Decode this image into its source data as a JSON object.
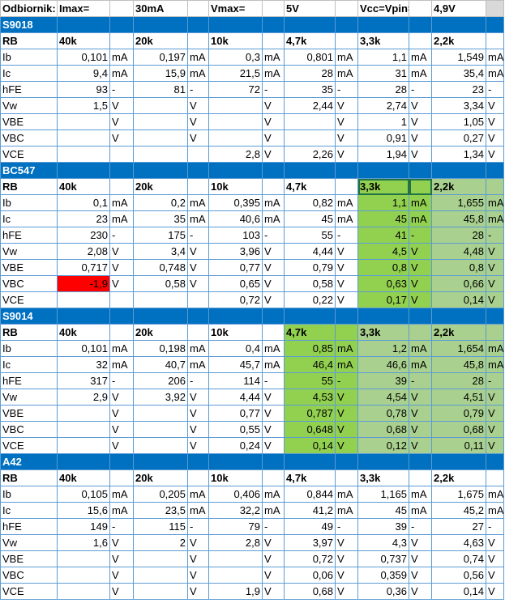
{
  "header": {
    "label": "Odbiornik:",
    "imax_label": "Imax=",
    "imax_value": "30mA",
    "vmax_label": "Vmax=",
    "vmax_value": "5V",
    "vcc_label": "Vcc=Vpin=",
    "vcc_value": "4,9V"
  },
  "colors": {
    "section": "#0070c0",
    "highlight_green": "#92d050",
    "highlight_light_green": "#a9d08e",
    "highlight_red": "#ff0000",
    "grid": "#5b9bd5"
  },
  "sections": [
    {
      "name": "S9018",
      "rb_label": "RB",
      "resistors": [
        "40k",
        "20k",
        "10k",
        "4,7k",
        "3,3k",
        "2,2k"
      ],
      "rows": [
        {
          "label": "Ib",
          "cells": [
            [
              "0,101",
              "mA"
            ],
            [
              "0,197",
              "mA"
            ],
            [
              "0,3",
              "mA"
            ],
            [
              "0,801",
              "mA"
            ],
            [
              "1,1",
              "mA"
            ],
            [
              "1,549",
              "mA"
            ]
          ]
        },
        {
          "label": "Ic",
          "cells": [
            [
              "9,4",
              "mA"
            ],
            [
              "15,9",
              "mA"
            ],
            [
              "21,5",
              "mA"
            ],
            [
              "28",
              "mA"
            ],
            [
              "31",
              "mA"
            ],
            [
              "35,4",
              "mA"
            ]
          ]
        },
        {
          "label": "hFE",
          "cells": [
            [
              "93",
              "-"
            ],
            [
              "81",
              "-"
            ],
            [
              "72",
              "-"
            ],
            [
              "35",
              "-"
            ],
            [
              "28",
              "-"
            ],
            [
              "23",
              "-"
            ]
          ]
        },
        {
          "label": "Vw",
          "cells": [
            [
              "1,5",
              "V"
            ],
            [
              "",
              "V"
            ],
            [
              "",
              "V"
            ],
            [
              "2,44",
              "V"
            ],
            [
              "2,74",
              "V"
            ],
            [
              "3,34",
              "V"
            ]
          ]
        },
        {
          "label": "VBE",
          "cells": [
            [
              "",
              "V"
            ],
            [
              "",
              "V"
            ],
            [
              "",
              "V"
            ],
            [
              "",
              "V"
            ],
            [
              "1",
              "V"
            ],
            [
              "1,05",
              "V"
            ]
          ]
        },
        {
          "label": "VBC",
          "cells": [
            [
              "",
              "V"
            ],
            [
              "",
              "V"
            ],
            [
              "",
              "V"
            ],
            [
              "",
              "V"
            ],
            [
              "0,91",
              "V"
            ],
            [
              "0,27",
              "V"
            ]
          ]
        },
        {
          "label": "VCE",
          "cells": [
            [
              "",
              ""
            ],
            [
              "",
              ""
            ],
            [
              "2,8",
              "V"
            ],
            [
              "2,26",
              "V"
            ],
            [
              "1,94",
              "V"
            ],
            [
              "1,34",
              "V"
            ]
          ]
        }
      ]
    },
    {
      "name": "BC547",
      "rb_label": "RB",
      "resistors": [
        "40k",
        "20k",
        "10k",
        "4,7k",
        "3,3k",
        "2,2k"
      ],
      "rows": [
        {
          "label": "Ib",
          "cells": [
            [
              "0,1",
              "mA"
            ],
            [
              "0,2",
              "mA"
            ],
            [
              "0,395",
              "mA"
            ],
            [
              "0,82",
              "mA"
            ],
            [
              "1,1",
              "mA"
            ],
            [
              "1,655",
              "mA"
            ]
          ]
        },
        {
          "label": "Ic",
          "cells": [
            [
              "23",
              "mA"
            ],
            [
              "35",
              "mA"
            ],
            [
              "40,6",
              "mA"
            ],
            [
              "45",
              "mA"
            ],
            [
              "45",
              "mA"
            ],
            [
              "45,8",
              "mA"
            ]
          ]
        },
        {
          "label": "hFE",
          "cells": [
            [
              "230",
              "-"
            ],
            [
              "175",
              "-"
            ],
            [
              "103",
              "-"
            ],
            [
              "55",
              "-"
            ],
            [
              "41",
              "-"
            ],
            [
              "28",
              "-"
            ]
          ]
        },
        {
          "label": "Vw",
          "cells": [
            [
              "2,08",
              "V"
            ],
            [
              "3,4",
              "V"
            ],
            [
              "3,96",
              "V"
            ],
            [
              "4,44",
              "V"
            ],
            [
              "4,5",
              "V"
            ],
            [
              "4,48",
              "V"
            ]
          ]
        },
        {
          "label": "VBE",
          "cells": [
            [
              "0,717",
              "V"
            ],
            [
              "0,748",
              "V"
            ],
            [
              "0,77",
              "V"
            ],
            [
              "0,79",
              "V"
            ],
            [
              "0,8",
              "V"
            ],
            [
              "0,8",
              "V"
            ]
          ]
        },
        {
          "label": "VBC",
          "cells": [
            [
              "-1,9",
              "V"
            ],
            [
              "0,58",
              "V"
            ],
            [
              "0,65",
              "V"
            ],
            [
              "0,58",
              "V"
            ],
            [
              "0,63",
              "V"
            ],
            [
              "0,66",
              "V"
            ]
          ]
        },
        {
          "label": "VCE",
          "cells": [
            [
              "",
              ""
            ],
            [
              "",
              ""
            ],
            [
              "0,72",
              "V"
            ],
            [
              "0,22",
              "V"
            ],
            [
              "0,17",
              "V"
            ],
            [
              "0,14",
              "V"
            ]
          ]
        }
      ]
    },
    {
      "name": "S9014",
      "rb_label": "RB",
      "resistors": [
        "40k",
        "20k",
        "10k",
        "4,7k",
        "3,3k",
        "2,2k"
      ],
      "rows": [
        {
          "label": "Ib",
          "cells": [
            [
              "0,101",
              "mA"
            ],
            [
              "0,198",
              "mA"
            ],
            [
              "0,4",
              "mA"
            ],
            [
              "0,85",
              "mA"
            ],
            [
              "1,2",
              "mA"
            ],
            [
              "1,654",
              "mA"
            ]
          ]
        },
        {
          "label": "Ic",
          "cells": [
            [
              "32",
              "mA"
            ],
            [
              "40,7",
              "mA"
            ],
            [
              "45,7",
              "mA"
            ],
            [
              "46,4",
              "mA"
            ],
            [
              "46,6",
              "mA"
            ],
            [
              "45,8",
              "mA"
            ]
          ]
        },
        {
          "label": "hFE",
          "cells": [
            [
              "317",
              "-"
            ],
            [
              "206",
              "-"
            ],
            [
              "114",
              "-"
            ],
            [
              "55",
              "-"
            ],
            [
              "39",
              "-"
            ],
            [
              "28",
              "-"
            ]
          ]
        },
        {
          "label": "Vw",
          "cells": [
            [
              "2,9",
              "V"
            ],
            [
              "3,92",
              "V"
            ],
            [
              "4,44",
              "V"
            ],
            [
              "4,53",
              "V"
            ],
            [
              "4,54",
              "V"
            ],
            [
              "4,51",
              "V"
            ]
          ]
        },
        {
          "label": "VBE",
          "cells": [
            [
              "",
              "V"
            ],
            [
              "",
              "V"
            ],
            [
              "0,77",
              "V"
            ],
            [
              "0,787",
              "V"
            ],
            [
              "0,78",
              "V"
            ],
            [
              "0,79",
              "V"
            ]
          ]
        },
        {
          "label": "VBC",
          "cells": [
            [
              "",
              "V"
            ],
            [
              "",
              "V"
            ],
            [
              "0,55",
              "V"
            ],
            [
              "0,648",
              "V"
            ],
            [
              "0,68",
              "V"
            ],
            [
              "0,68",
              "V"
            ]
          ]
        },
        {
          "label": "VCE",
          "cells": [
            [
              "",
              "V"
            ],
            [
              "",
              "V"
            ],
            [
              "0,24",
              "V"
            ],
            [
              "0,14",
              "V"
            ],
            [
              "0,12",
              "V"
            ],
            [
              "0,11",
              "V"
            ]
          ]
        }
      ]
    },
    {
      "name": "A42",
      "rb_label": "RB",
      "resistors": [
        "40k",
        "20k",
        "10k",
        "4,7k",
        "3,3k",
        "2,2k"
      ],
      "rows": [
        {
          "label": "Ib",
          "cells": [
            [
              "0,105",
              "mA"
            ],
            [
              "0,205",
              "mA"
            ],
            [
              "0,406",
              "mA"
            ],
            [
              "0,844",
              "mA"
            ],
            [
              "1,165",
              "mA"
            ],
            [
              "1,675",
              "mA"
            ]
          ]
        },
        {
          "label": "Ic",
          "cells": [
            [
              "15,6",
              "mA"
            ],
            [
              "23,5",
              "mA"
            ],
            [
              "32,2",
              "mA"
            ],
            [
              "41,2",
              "mA"
            ],
            [
              "45",
              "mA"
            ],
            [
              "45,2",
              "mA"
            ]
          ]
        },
        {
          "label": "hFE",
          "cells": [
            [
              "149",
              "-"
            ],
            [
              "115",
              "-"
            ],
            [
              "79",
              "-"
            ],
            [
              "49",
              "-"
            ],
            [
              "39",
              "-"
            ],
            [
              "27",
              "-"
            ]
          ]
        },
        {
          "label": "Vw",
          "cells": [
            [
              "1,6",
              "V"
            ],
            [
              "2",
              "V"
            ],
            [
              "2,8",
              "V"
            ],
            [
              "3,97",
              "V"
            ],
            [
              "4,3",
              "V"
            ],
            [
              "4,63",
              "V"
            ]
          ]
        },
        {
          "label": "VBE",
          "cells": [
            [
              "",
              "V"
            ],
            [
              "",
              "V"
            ],
            [
              "",
              "V"
            ],
            [
              "0,72",
              "V"
            ],
            [
              "0,737",
              "V"
            ],
            [
              "0,74",
              "V"
            ]
          ]
        },
        {
          "label": "VBC",
          "cells": [
            [
              "",
              "V"
            ],
            [
              "",
              "V"
            ],
            [
              "",
              "V"
            ],
            [
              "0,06",
              "V"
            ],
            [
              "0,359",
              "V"
            ],
            [
              "0,56",
              "V"
            ]
          ]
        },
        {
          "label": "VCE",
          "cells": [
            [
              "",
              "V"
            ],
            [
              "",
              "V"
            ],
            [
              "1,9",
              "V"
            ],
            [
              "0,68",
              "V"
            ],
            [
              "0,36",
              "V"
            ],
            [
              "0,14",
              "V"
            ]
          ]
        }
      ]
    }
  ]
}
